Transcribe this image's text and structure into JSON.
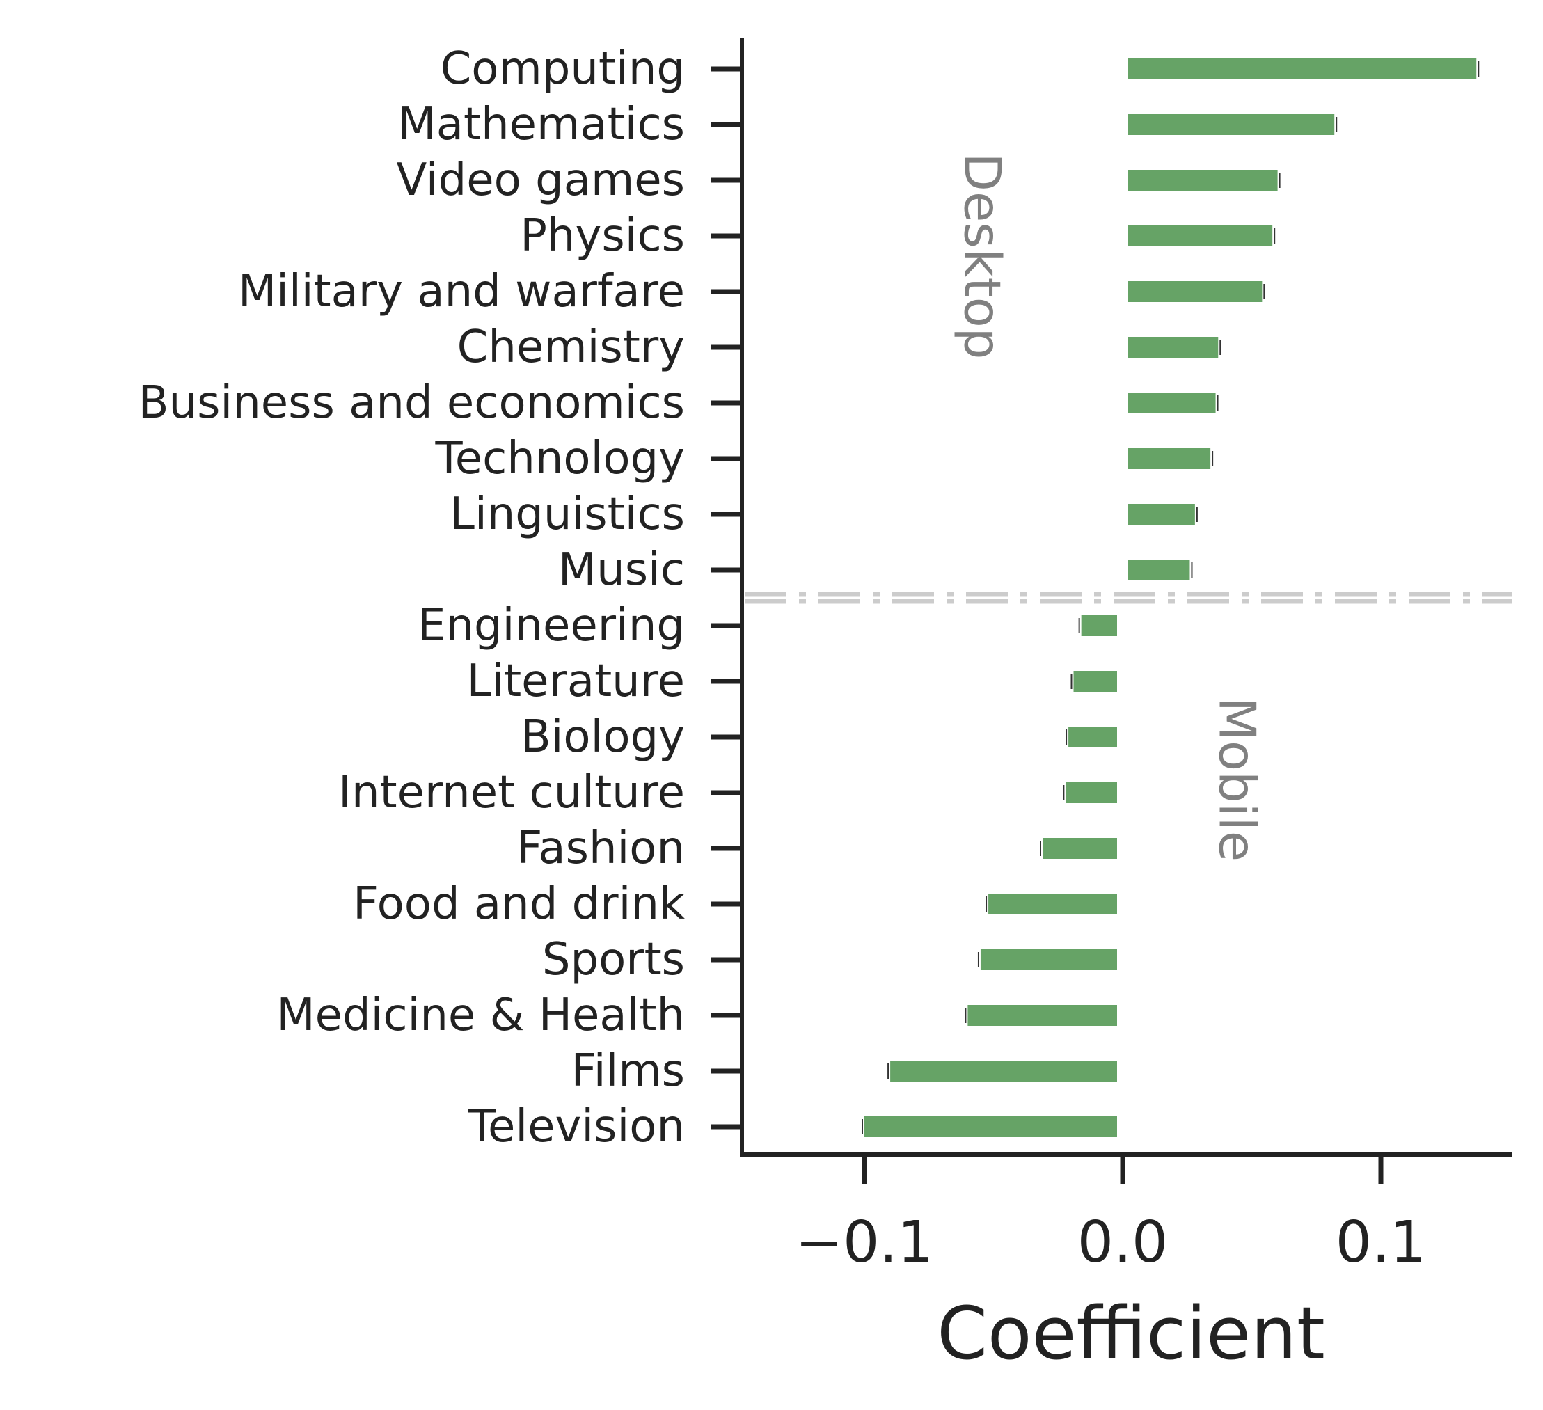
{
  "chart_data": {
    "type": "bar",
    "orientation": "horizontal",
    "xlabel": "Coefficient",
    "xlim": [
      -0.15,
      0.15
    ],
    "xticks": [
      -0.1,
      0.0,
      0.1
    ],
    "xtick_labels": [
      "−0.1",
      "0.0",
      "0.1"
    ],
    "categories": [
      "Computing",
      "Mathematics",
      "Video games",
      "Physics",
      "Military and warfare",
      "Chemistry",
      "Business and economics",
      "Technology",
      "Linguistics",
      "Music",
      "Engineering",
      "Literature",
      "Biology",
      "Internet culture",
      "Fashion",
      "Food and drink",
      "Sports",
      "Medicine & Health",
      "Films",
      "Television"
    ],
    "values": [
      0.137,
      0.082,
      0.06,
      0.058,
      0.054,
      0.037,
      0.036,
      0.034,
      0.028,
      0.026,
      -0.016,
      -0.019,
      -0.021,
      -0.022,
      -0.031,
      -0.052,
      -0.055,
      -0.06,
      -0.09,
      -0.1
    ],
    "bar_color": "#66a366",
    "divider_color": "#cccccc",
    "group_labels": [
      "Desktop",
      "Mobile"
    ],
    "grid": false
  }
}
